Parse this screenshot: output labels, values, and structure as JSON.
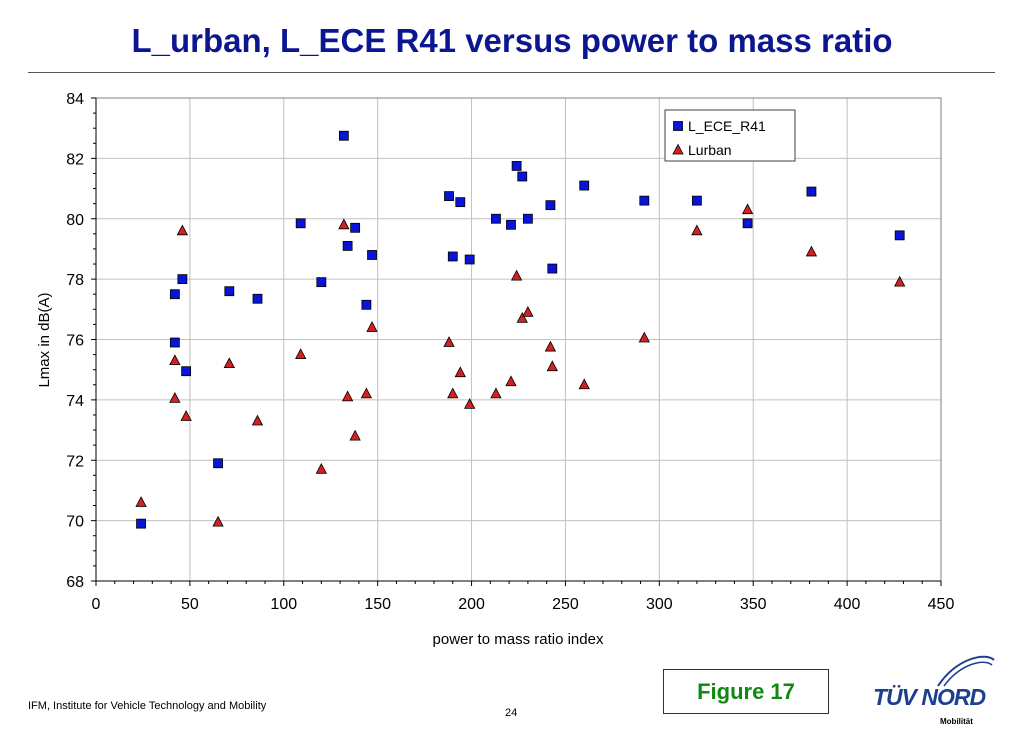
{
  "slide": {
    "title": "L_urban, L_ECE R41 versus power to mass ratio",
    "figure_label": "Figure 17",
    "footer": "IFM, Institute for Vehicle Technology and Mobility",
    "page_number": "24",
    "logo_text": "TÜV NORD",
    "logo_subtext": "Mobilität"
  },
  "chart_data": {
    "type": "scatter",
    "xlabel": "power to mass ratio index",
    "ylabel": "Lmax in dB(A)",
    "xlim": [
      0,
      450
    ],
    "ylim": [
      68,
      84
    ],
    "x_ticks": [
      0,
      50,
      100,
      150,
      200,
      250,
      300,
      350,
      400,
      450
    ],
    "y_ticks": [
      68,
      70,
      72,
      74,
      76,
      78,
      80,
      82,
      84
    ],
    "grid": true,
    "legend_position": "top-right",
    "series": [
      {
        "name": "L_ECE_R41",
        "marker": "square",
        "color": "#0a14d6",
        "points": [
          [
            24,
            69.9
          ],
          [
            42,
            77.5
          ],
          [
            42,
            75.9
          ],
          [
            46,
            78.0
          ],
          [
            48,
            74.95
          ],
          [
            65,
            71.9
          ],
          [
            71,
            77.6
          ],
          [
            86,
            77.35
          ],
          [
            109,
            79.85
          ],
          [
            120,
            77.9
          ],
          [
            132,
            82.75
          ],
          [
            134,
            79.1
          ],
          [
            138,
            79.7
          ],
          [
            144,
            77.15
          ],
          [
            147,
            78.8
          ],
          [
            188,
            80.75
          ],
          [
            190,
            78.75
          ],
          [
            194,
            80.55
          ],
          [
            199,
            78.65
          ],
          [
            213,
            80.0
          ],
          [
            221,
            79.8
          ],
          [
            224,
            81.75
          ],
          [
            227,
            81.4
          ],
          [
            230,
            80.0
          ],
          [
            242,
            80.45
          ],
          [
            243,
            78.35
          ],
          [
            260,
            81.1
          ],
          [
            292,
            80.6
          ],
          [
            320,
            80.6
          ],
          [
            347,
            79.85
          ],
          [
            381,
            80.9
          ],
          [
            428,
            79.45
          ]
        ]
      },
      {
        "name": "Lurban",
        "marker": "triangle",
        "color": "#d42020",
        "points": [
          [
            24,
            70.6
          ],
          [
            42,
            75.3
          ],
          [
            42,
            74.05
          ],
          [
            46,
            79.6
          ],
          [
            48,
            73.45
          ],
          [
            65,
            69.95
          ],
          [
            71,
            75.2
          ],
          [
            86,
            73.3
          ],
          [
            109,
            75.5
          ],
          [
            120,
            71.7
          ],
          [
            132,
            79.8
          ],
          [
            134,
            74.1
          ],
          [
            138,
            72.8
          ],
          [
            144,
            74.2
          ],
          [
            147,
            76.4
          ],
          [
            188,
            75.9
          ],
          [
            190,
            74.2
          ],
          [
            194,
            74.9
          ],
          [
            199,
            73.85
          ],
          [
            213,
            74.2
          ],
          [
            221,
            74.6
          ],
          [
            224,
            78.1
          ],
          [
            227,
            76.7
          ],
          [
            230,
            76.9
          ],
          [
            242,
            75.75
          ],
          [
            243,
            75.1
          ],
          [
            260,
            74.5
          ],
          [
            292,
            76.05
          ],
          [
            320,
            79.6
          ],
          [
            347,
            80.3
          ],
          [
            381,
            78.9
          ],
          [
            428,
            77.9
          ]
        ]
      }
    ]
  }
}
